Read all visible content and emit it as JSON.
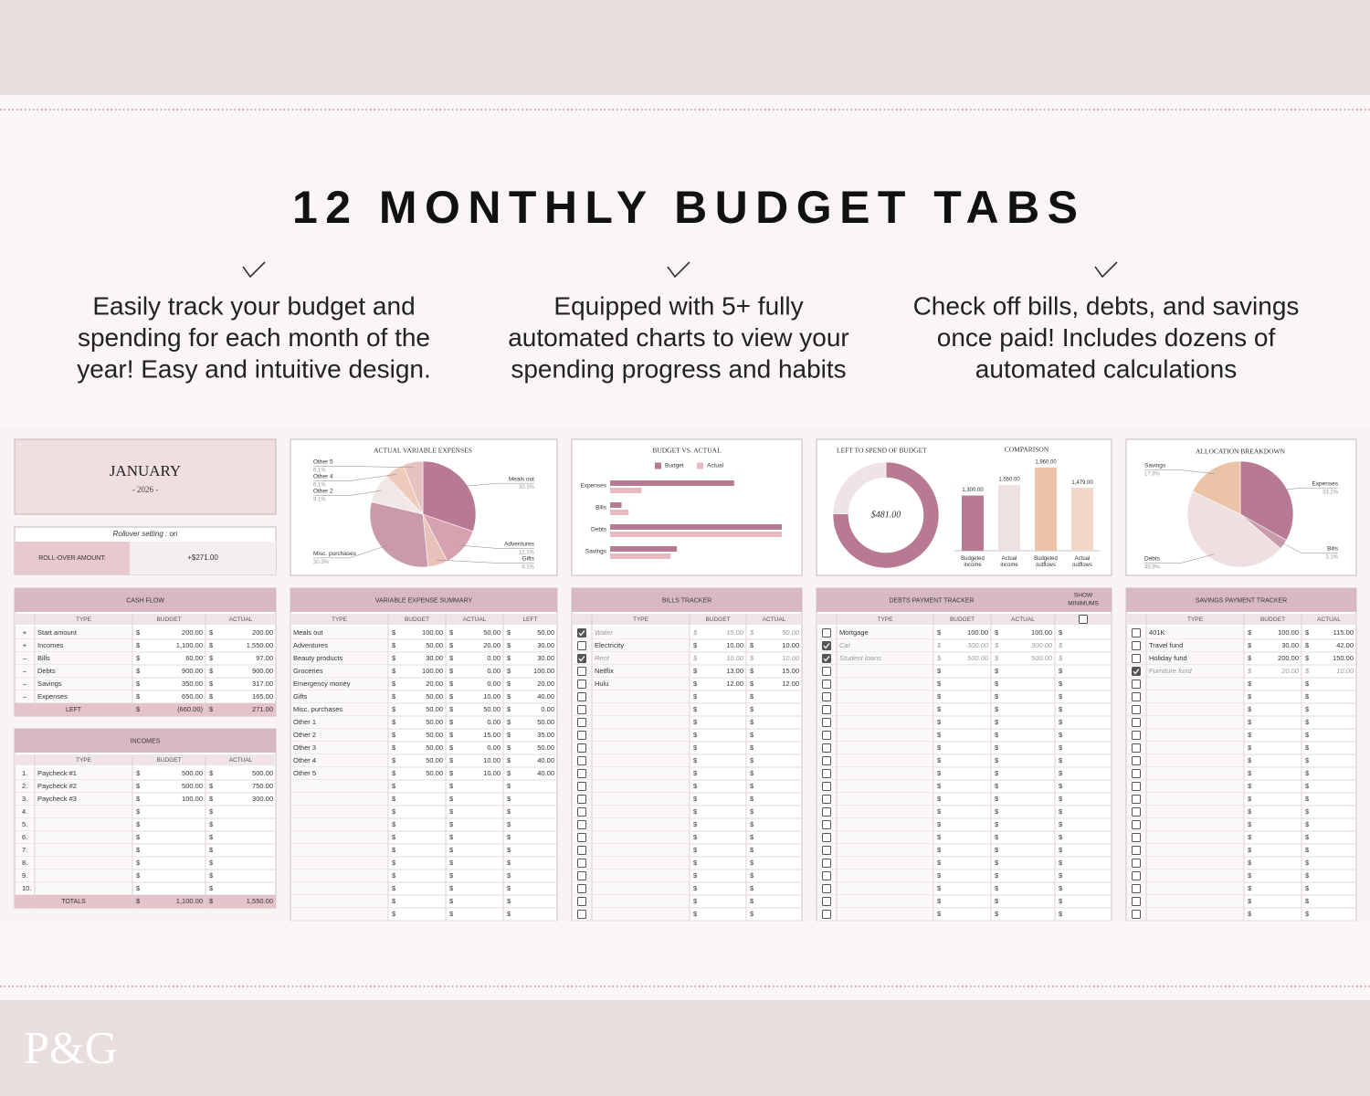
{
  "header": {
    "title": "12 MONTHLY BUDGET TABS"
  },
  "features": [
    {
      "lines": [
        "Easily track your budget and",
        "spending for each month of the",
        "year! Easy and intuitive design."
      ]
    },
    {
      "lines": [
        "Equipped with 5+ fully",
        "automated charts to view your",
        "spending progress and habits"
      ]
    },
    {
      "lines": [
        "Check off bills, debts, and savings",
        "once paid! Includes dozens of",
        "automated calculations"
      ]
    }
  ],
  "brand": {
    "logo": "P&G"
  },
  "sheet": {
    "currency": "$",
    "month": {
      "name": "JANUARY",
      "year": "- 2026 -"
    },
    "rollover": {
      "setting": "Rollover setting : on",
      "label": "ROLL-OVER AMOUNT:",
      "amount": "+$271.00"
    },
    "cash_flow": {
      "title": "CASH FLOW",
      "columns": [
        "TYPE",
        "BUDGET",
        "ACTUAL"
      ],
      "rows": [
        {
          "sign": "+",
          "type": "Start amount",
          "budget": "200.00",
          "actual": "200.00"
        },
        {
          "sign": "+",
          "type": "Incomes",
          "budget": "1,100.00",
          "actual": "1,550.00"
        },
        {
          "sign": "–",
          "type": "Bills",
          "budget": "60.00",
          "actual": "97.00"
        },
        {
          "sign": "–",
          "type": "Debts",
          "budget": "900.00",
          "actual": "900.00"
        },
        {
          "sign": "–",
          "type": "Savings",
          "budget": "350.00",
          "actual": "317.00"
        },
        {
          "sign": "–",
          "type": "Expenses",
          "budget": "650.00",
          "actual": "165.00"
        }
      ],
      "total": {
        "type": "LEFT",
        "budget": "(660.00)",
        "actual": "271.00"
      }
    },
    "incomes": {
      "title": "INCOMES",
      "columns": [
        "TYPE",
        "BUDGET",
        "ACTUAL"
      ],
      "rows": [
        {
          "num": "1.",
          "type": "Paycheck #1",
          "budget": "500.00",
          "actual": "500.00"
        },
        {
          "num": "2.",
          "type": "Paycheck #2",
          "budget": "500.00",
          "actual": "750.00"
        },
        {
          "num": "3.",
          "type": "Paycheck #3",
          "budget": "100.00",
          "actual": "300.00"
        },
        {
          "num": "4."
        },
        {
          "num": "5."
        },
        {
          "num": "6."
        },
        {
          "num": "7."
        },
        {
          "num": "8."
        },
        {
          "num": "9."
        },
        {
          "num": "10."
        }
      ],
      "total": {
        "type": "TOTALS",
        "budget": "1,100.00",
        "actual": "1,550.00"
      }
    },
    "variable_expenses": {
      "title": "VARIABLE EXPENSE SUMMARY",
      "columns": [
        "TYPE",
        "BUDGET",
        "ACTUAL",
        "LEFT"
      ],
      "rows": [
        {
          "type": "Meals out",
          "budget": "100.00",
          "actual": "50.00",
          "left": "50.00"
        },
        {
          "type": "Adventures",
          "budget": "50.00",
          "actual": "20.00",
          "left": "30.00"
        },
        {
          "type": "Beauty products",
          "budget": "30.00",
          "actual": "0.00",
          "left": "30.00"
        },
        {
          "type": "Groceries",
          "budget": "100.00",
          "actual": "0.00",
          "left": "100.00"
        },
        {
          "type": "Emergency money",
          "budget": "20.00",
          "actual": "0.00",
          "left": "20.00"
        },
        {
          "type": "Gifts",
          "budget": "50.00",
          "actual": "10.00",
          "left": "40.00"
        },
        {
          "type": "Misc. purchases",
          "budget": "50.00",
          "actual": "50.00",
          "left": "0.00"
        },
        {
          "type": "Other 1",
          "budget": "50.00",
          "actual": "0.00",
          "left": "50.00"
        },
        {
          "type": "Other 2",
          "budget": "50.00",
          "actual": "15.00",
          "left": "35.00"
        },
        {
          "type": "Other 3",
          "budget": "50.00",
          "actual": "0.00",
          "left": "50.00"
        },
        {
          "type": "Other 4",
          "budget": "50.00",
          "actual": "10.00",
          "left": "40.00"
        },
        {
          "type": "Other 5",
          "budget": "50.00",
          "actual": "10.00",
          "left": "40.00"
        }
      ]
    },
    "bills": {
      "title": "BILLS TRACKER",
      "columns": [
        "TYPE",
        "BUDGET",
        "ACTUAL"
      ],
      "rows": [
        {
          "paid": true,
          "type": "Water",
          "budget": "15.00",
          "actual": "50.00"
        },
        {
          "paid": false,
          "type": "Electricity",
          "budget": "10.00",
          "actual": "10.00"
        },
        {
          "paid": true,
          "type": "Rent",
          "budget": "10.00",
          "actual": "10.00"
        },
        {
          "paid": false,
          "type": "Netflix",
          "budget": "13.00",
          "actual": "15.00"
        },
        {
          "paid": false,
          "type": "Hulu",
          "budget": "12.00",
          "actual": "12.00"
        }
      ]
    },
    "debts": {
      "title": "DEBTS PAYMENT TRACKER",
      "columns": [
        "TYPE",
        "BUDGET",
        "ACTUAL"
      ],
      "show_minimums": {
        "lines": [
          "SHOW",
          "MINIMUMS"
        ],
        "checked": false
      },
      "rows": [
        {
          "paid": false,
          "type": "Mortgage",
          "budget": "100.00",
          "actual": "100.00"
        },
        {
          "paid": true,
          "type": "Car",
          "budget": "300.00",
          "actual": "300.00"
        },
        {
          "paid": true,
          "type": "Student loans",
          "budget": "500.00",
          "actual": "500.00"
        }
      ]
    },
    "savings": {
      "title": "SAVINGS PAYMENT TRACKER",
      "columns": [
        "TYPE",
        "BUDGET",
        "ACTUAL"
      ],
      "rows": [
        {
          "paid": false,
          "type": "401K",
          "budget": "100.00",
          "actual": "115.00"
        },
        {
          "paid": false,
          "type": "Travel fund",
          "budget": "30.00",
          "actual": "42.00"
        },
        {
          "paid": false,
          "type": "Holiday fund",
          "budget": "200.00",
          "actual": "150.00"
        },
        {
          "paid": true,
          "type": "Furniture fund",
          "budget": "20.00",
          "actual": "10.00"
        }
      ]
    }
  },
  "chart_data": [
    {
      "type": "pie",
      "title": "ACTUAL VARIABLE EXPENSES",
      "categories": [
        "Meals out",
        "Adventures",
        "Gifts",
        "Misc. purchases",
        "Other 2",
        "Other 4",
        "Other 5"
      ],
      "values": [
        30.3,
        12.1,
        6.1,
        30.3,
        9.1,
        6.1,
        6.1
      ],
      "value_labels": [
        "30.3%",
        "12.1%",
        "6.1%",
        "30.3%",
        "9.1%",
        "6.1%",
        "6.1%"
      ],
      "colors": [
        "#b87a92",
        "#d6a2b0",
        "#e8c1b8",
        "#c99aab",
        "#f1e7e7",
        "#efcbbd",
        "#e6c3c0"
      ]
    },
    {
      "type": "bar",
      "orientation": "horizontal",
      "title": "BUDGET VS. ACTUAL",
      "categories": [
        "Expenses",
        "Bills",
        "Debts",
        "Savings"
      ],
      "series": [
        {
          "name": "Budget",
          "color": "#b87a92",
          "values": [
            650,
            60,
            900,
            350
          ]
        },
        {
          "name": "Actual",
          "color": "#e8b9c3",
          "values": [
            165,
            97,
            900,
            317
          ]
        }
      ],
      "xlim": [
        0,
        900
      ]
    },
    {
      "type": "donut",
      "title": "LEFT TO SPEND OF BUDGET",
      "center_label": "$481.00",
      "values": [
        1479,
        481
      ],
      "colors": [
        "#b87a92",
        "#efe3e5"
      ]
    },
    {
      "type": "bar",
      "orientation": "vertical",
      "title": "COMPARISON",
      "categories": [
        "Budgeted income",
        "Actual income",
        "Budgeted outflows",
        "Actual outflows"
      ],
      "values": [
        1300,
        1550,
        1960,
        1479
      ],
      "value_labels": [
        "1,300.00",
        "1,550.00",
        "1,960.00",
        "1,479.00"
      ],
      "colors": [
        "#b87a92",
        "#ede1e1",
        "#ebc4ab",
        "#f2d6c8"
      ],
      "ylim": [
        0,
        2000
      ]
    },
    {
      "type": "pie",
      "title": "ALLOCATION BREAKDOWN",
      "categories": [
        "Expenses",
        "Bills",
        "Debts",
        "Savings"
      ],
      "values": [
        33.2,
        3.1,
        45.9,
        17.9
      ],
      "value_labels": [
        "33.2%",
        "3.1%",
        "45.9%",
        "17.9%"
      ],
      "colors": [
        "#b87a92",
        "#c99aab",
        "#eedfe0",
        "#ebc4a8"
      ]
    }
  ]
}
